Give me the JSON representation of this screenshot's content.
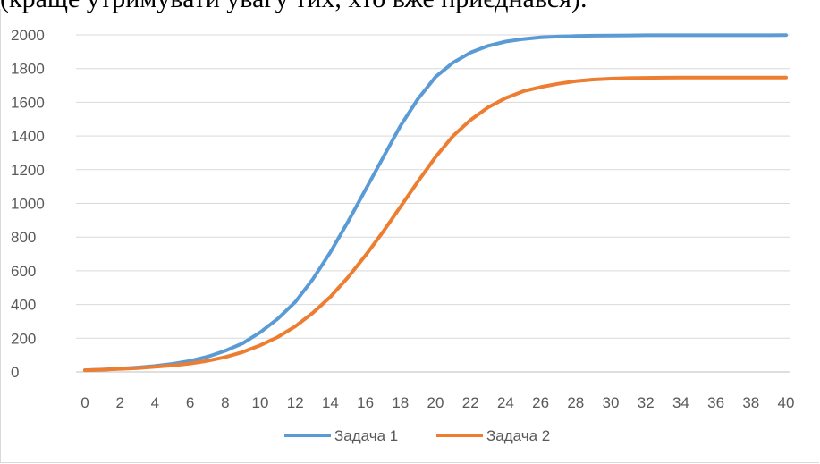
{
  "caption": "(краще утримувати увагу тих, хто вже приєднався).",
  "chart_data": {
    "type": "line",
    "x": [
      0,
      1,
      2,
      3,
      4,
      5,
      6,
      7,
      8,
      9,
      10,
      11,
      12,
      13,
      14,
      15,
      16,
      17,
      18,
      19,
      20,
      21,
      22,
      23,
      24,
      25,
      26,
      27,
      28,
      29,
      30,
      31,
      32,
      33,
      34,
      35,
      36,
      37,
      38,
      39,
      40
    ],
    "xticks": [
      0,
      2,
      4,
      6,
      8,
      10,
      12,
      14,
      16,
      18,
      20,
      22,
      24,
      26,
      28,
      30,
      32,
      34,
      36,
      38,
      40
    ],
    "ylim": [
      0,
      2000
    ],
    "yticks": [
      0,
      200,
      400,
      600,
      800,
      1000,
      1200,
      1400,
      1600,
      1800,
      2000
    ],
    "grid": true,
    "legend_position": "bottom",
    "series": [
      {
        "name": "Задача 1",
        "color": "#5b9bd5",
        "values": [
          10,
          14,
          19,
          26,
          35,
          48,
          65,
          90,
          125,
          170,
          235,
          315,
          415,
          550,
          710,
          890,
          1080,
          1270,
          1460,
          1620,
          1750,
          1835,
          1895,
          1935,
          1960,
          1975,
          1985,
          1990,
          1993,
          1995,
          1996,
          1997,
          1998,
          1998,
          1998,
          1998,
          1998,
          1998,
          1998,
          1998,
          1999
        ]
      },
      {
        "name": "Задача 2",
        "color": "#ed7d31",
        "values": [
          10,
          13,
          18,
          23,
          30,
          38,
          50,
          66,
          88,
          118,
          158,
          207,
          270,
          350,
          445,
          560,
          690,
          830,
          980,
          1130,
          1275,
          1400,
          1495,
          1570,
          1625,
          1665,
          1690,
          1710,
          1725,
          1735,
          1740,
          1743,
          1745,
          1746,
          1747,
          1747,
          1747,
          1747,
          1747,
          1747,
          1747
        ]
      }
    ]
  }
}
